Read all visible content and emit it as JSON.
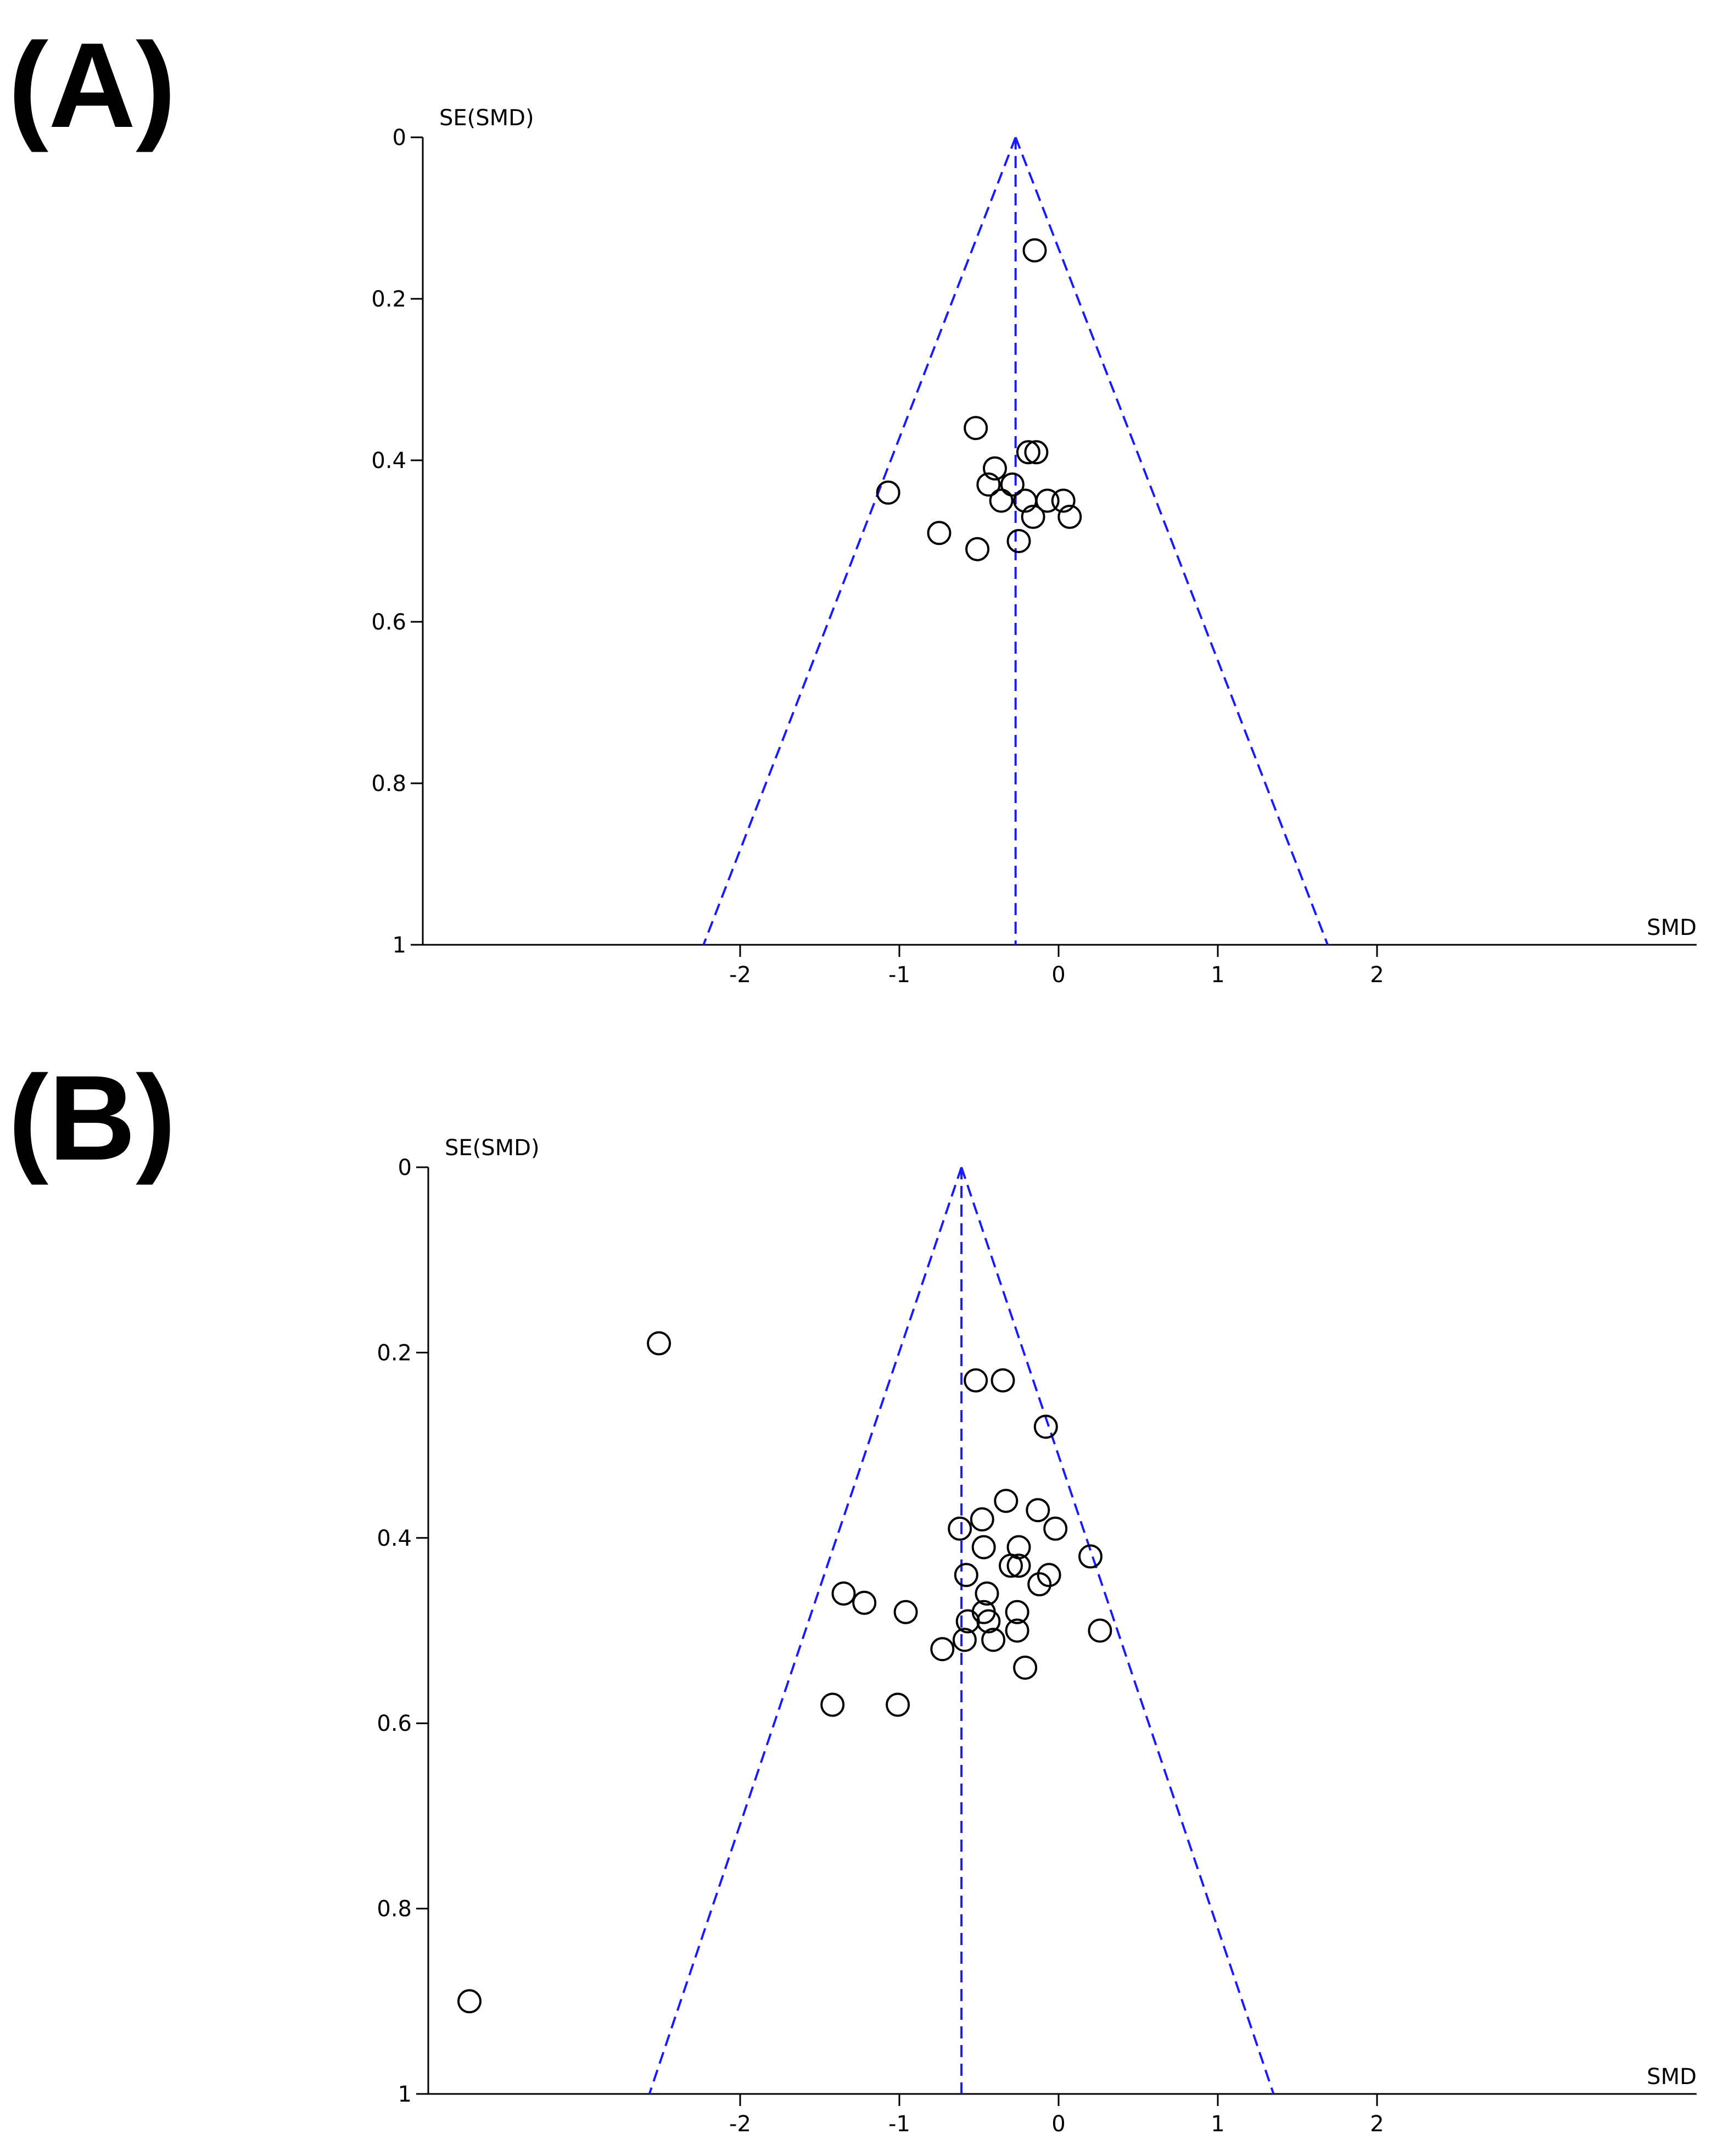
{
  "chart_data": [
    {
      "type": "scatter",
      "panel_label": "(A)",
      "xlabel": "SMD",
      "ylabel": "SE(SMD)",
      "xlim": [
        -4,
        4
      ],
      "ylim": [
        0,
        1
      ],
      "y_reversed": true,
      "xticks": [
        "-2",
        "-1",
        "0",
        "1",
        "2"
      ],
      "yticks": [
        "0",
        "0.2",
        "0.4",
        "0.6",
        "0.8",
        "1"
      ],
      "pooled_estimate": -0.27,
      "funnel": "pseudo 95% CI (dashed)",
      "line_color": "#1a1aff",
      "marker": "open-circle",
      "points": [
        {
          "x": -0.15,
          "y": 0.14
        },
        {
          "x": -0.52,
          "y": 0.36
        },
        {
          "x": -0.19,
          "y": 0.39
        },
        {
          "x": -0.14,
          "y": 0.39
        },
        {
          "x": -0.4,
          "y": 0.41
        },
        {
          "x": -0.29,
          "y": 0.43
        },
        {
          "x": -0.44,
          "y": 0.43
        },
        {
          "x": -0.36,
          "y": 0.45
        },
        {
          "x": -1.07,
          "y": 0.44
        },
        {
          "x": -0.21,
          "y": 0.45
        },
        {
          "x": -0.07,
          "y": 0.45
        },
        {
          "x": 0.03,
          "y": 0.45
        },
        {
          "x": -0.16,
          "y": 0.47
        },
        {
          "x": 0.07,
          "y": 0.47
        },
        {
          "x": -0.75,
          "y": 0.49
        },
        {
          "x": -0.25,
          "y": 0.5
        },
        {
          "x": -0.51,
          "y": 0.51
        }
      ]
    },
    {
      "type": "scatter",
      "panel_label": "(B)",
      "xlabel": "SMD",
      "ylabel": "SE(SMD)",
      "xlim": [
        -4,
        4
      ],
      "ylim": [
        0,
        1
      ],
      "y_reversed": true,
      "xticks": [
        "-2",
        "-1",
        "0",
        "1",
        "2"
      ],
      "yticks": [
        "0",
        "0.2",
        "0.4",
        "0.6",
        "0.8",
        "1"
      ],
      "pooled_estimate": -0.61,
      "funnel": "pseudo 95% CI (dashed)",
      "line_color": "#1a1aff",
      "marker": "open-circle",
      "points": [
        {
          "x": -2.51,
          "y": 0.19
        },
        {
          "x": -0.52,
          "y": 0.23
        },
        {
          "x": -0.35,
          "y": 0.23
        },
        {
          "x": -0.08,
          "y": 0.28
        },
        {
          "x": -0.33,
          "y": 0.36
        },
        {
          "x": -0.13,
          "y": 0.37
        },
        {
          "x": -0.48,
          "y": 0.38
        },
        {
          "x": -0.62,
          "y": 0.39
        },
        {
          "x": -0.02,
          "y": 0.39
        },
        {
          "x": -0.25,
          "y": 0.41
        },
        {
          "x": -0.47,
          "y": 0.41
        },
        {
          "x": 0.2,
          "y": 0.42
        },
        {
          "x": -0.3,
          "y": 0.43
        },
        {
          "x": -0.25,
          "y": 0.43
        },
        {
          "x": -0.58,
          "y": 0.44
        },
        {
          "x": -0.12,
          "y": 0.45
        },
        {
          "x": -0.06,
          "y": 0.44
        },
        {
          "x": -0.45,
          "y": 0.46
        },
        {
          "x": -1.35,
          "y": 0.46
        },
        {
          "x": -1.22,
          "y": 0.47
        },
        {
          "x": -0.96,
          "y": 0.48
        },
        {
          "x": -0.26,
          "y": 0.48
        },
        {
          "x": -0.47,
          "y": 0.48
        },
        {
          "x": -0.44,
          "y": 0.49
        },
        {
          "x": -0.57,
          "y": 0.49
        },
        {
          "x": -0.26,
          "y": 0.5
        },
        {
          "x": 0.26,
          "y": 0.5
        },
        {
          "x": -0.41,
          "y": 0.51
        },
        {
          "x": -0.59,
          "y": 0.51
        },
        {
          "x": -0.73,
          "y": 0.52
        },
        {
          "x": -0.21,
          "y": 0.54
        },
        {
          "x": -1.42,
          "y": 0.58
        },
        {
          "x": -1.01,
          "y": 0.58
        },
        {
          "x": -3.7,
          "y": 0.9
        }
      ]
    }
  ]
}
